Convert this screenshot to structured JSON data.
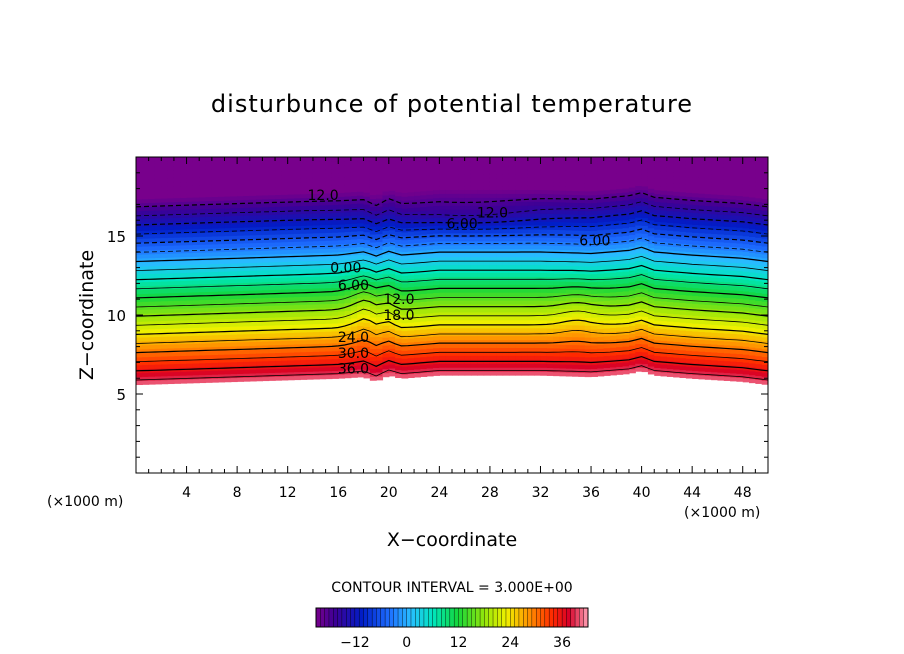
{
  "chart_data": {
    "type": "heatmap",
    "title": "disturbunce of potential temperature",
    "xlabel": "X−coordinate",
    "ylabel": "Z−coordinate",
    "x_unit_left": "(×1000 m)",
    "x_unit_right": "(×1000 m)",
    "xlim": [
      0,
      50
    ],
    "ylim": [
      0,
      20
    ],
    "x_ticks": [
      4,
      8,
      12,
      16,
      20,
      24,
      28,
      32,
      36,
      40,
      44,
      48
    ],
    "y_ticks": [
      5,
      10,
      15
    ],
    "contour_interval_text": "CONTOUR INTERVAL = 3.000E+00",
    "colorbar": {
      "range": [
        -21,
        42
      ],
      "ticks": [
        -12,
        0,
        12,
        24,
        36
      ],
      "tick_labels": [
        "−12",
        "0",
        "12",
        "24",
        "36"
      ]
    },
    "bottom_boundary": {
      "x": [
        0,
        4,
        8,
        12,
        16,
        18,
        19,
        20,
        21,
        24,
        28,
        32,
        36,
        39,
        40,
        41,
        44,
        48,
        50
      ],
      "z": [
        5.6,
        5.7,
        5.8,
        5.9,
        6.0,
        6.1,
        5.8,
        6.2,
        6.0,
        6.2,
        6.2,
        6.2,
        6.1,
        6.3,
        6.5,
        6.2,
        6.0,
        5.8,
        5.6
      ]
    },
    "contour_labels": [
      {
        "text": "36.0",
        "x": 17.2,
        "z": 6.6
      },
      {
        "text": "30.0",
        "x": 17.2,
        "z": 7.6
      },
      {
        "text": "24.0",
        "x": 17.2,
        "z": 8.6
      },
      {
        "text": "18.0",
        "x": 20.8,
        "z": 10.0
      },
      {
        "text": "12.0",
        "x": 20.8,
        "z": 11.0
      },
      {
        "text": "6.00",
        "x": 17.2,
        "z": 11.9
      },
      {
        "text": "0.00",
        "x": 16.6,
        "z": 13.0
      },
      {
        "text": "12.0",
        "x": 14.8,
        "z": 17.6
      },
      {
        "text": "6.00",
        "x": 25.8,
        "z": 15.8
      },
      {
        "text": "12.0",
        "x": 28.2,
        "z": 16.5
      },
      {
        "text": "6.00",
        "x": 36.3,
        "z": 14.7
      }
    ]
  }
}
